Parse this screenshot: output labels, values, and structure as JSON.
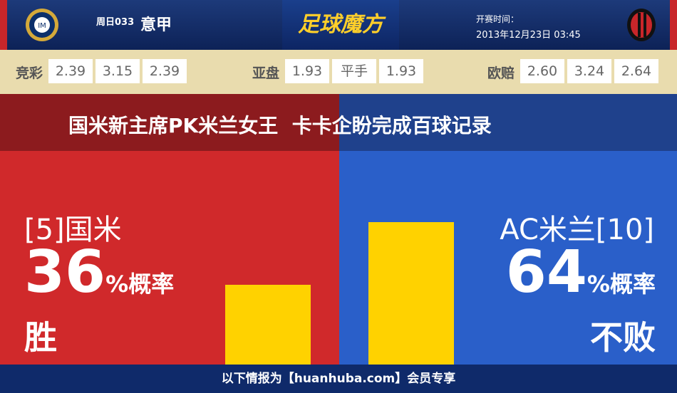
{
  "header": {
    "match_no": "周日033",
    "league": "意甲",
    "logo": "足球魔方",
    "time_label": "开赛时间：",
    "time": "2013年12月23日 03:45"
  },
  "odds": [
    {
      "label": "竞彩",
      "values": [
        "2.39",
        "3.15",
        "2.39"
      ]
    },
    {
      "label": "亚盘",
      "values": [
        "1.93",
        "平手",
        "1.93"
      ]
    },
    {
      "label": "欧赔",
      "values": [
        "2.60",
        "3.24",
        "2.64"
      ]
    }
  ],
  "headline": "国米新主席PK米兰女王  卡卡企盼完成百球记录",
  "home": {
    "name": "[5]国米",
    "percent": 36,
    "unit": "%概率",
    "outcome": "胜"
  },
  "away": {
    "name": "AC米兰[10]",
    "percent": 64,
    "unit": "%概率",
    "outcome": "不败"
  },
  "footer": "以下情报为【huanhuba.com】会员专享"
}
